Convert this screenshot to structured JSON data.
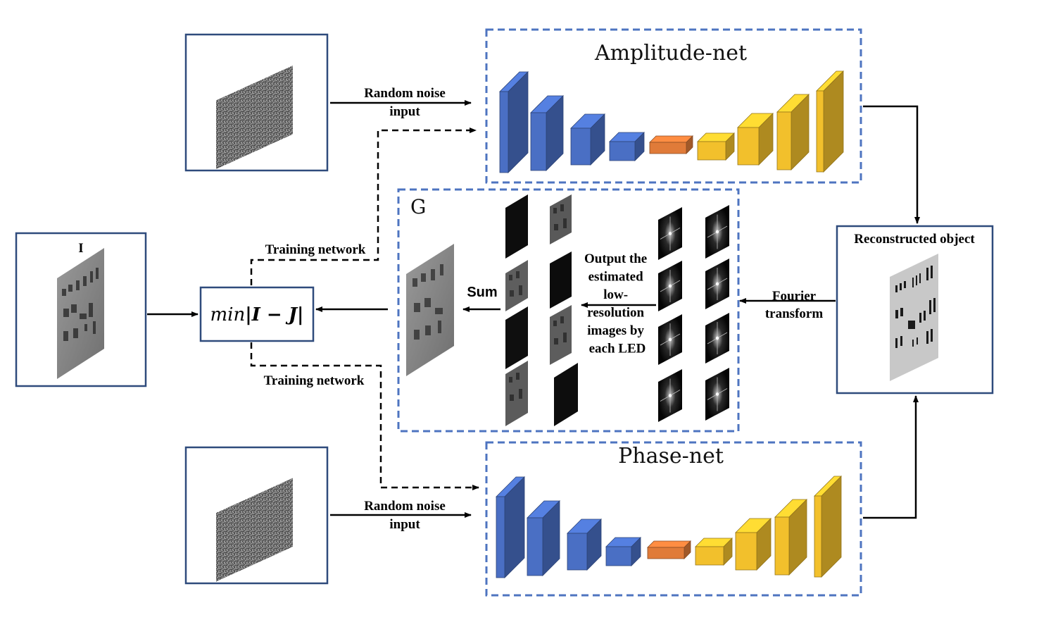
{
  "amplitude_net": {
    "title": "Amplitude-net"
  },
  "phase_net": {
    "title": "Phase-net"
  },
  "g_block": {
    "title": "G"
  },
  "input_image": {
    "label": "I"
  },
  "loss": {
    "formula_prefix": "min",
    "formula_body": "|I − J|"
  },
  "labels": {
    "noise_top_line1": "Random noise",
    "noise_top_line2": "input",
    "noise_bottom_line1": "Random noise",
    "noise_bottom_line2": "input",
    "training_top": "Training network",
    "training_bottom": "Training network",
    "sum": "Sum",
    "output_lines": [
      "Output the",
      "estimated",
      "low-",
      "resolution",
      "images by",
      "each LED"
    ],
    "fourier_line1": "Fourier",
    "fourier_line2": "transform",
    "reconstructed": "Reconstructed object"
  },
  "colors": {
    "frame_border": "#2f4b7c",
    "dashed_border": "#4e74c0",
    "encoder_blue": "#4a6fc4",
    "bottleneck_orange": "#e07b39",
    "decoder_yellow": "#f2c02c"
  }
}
